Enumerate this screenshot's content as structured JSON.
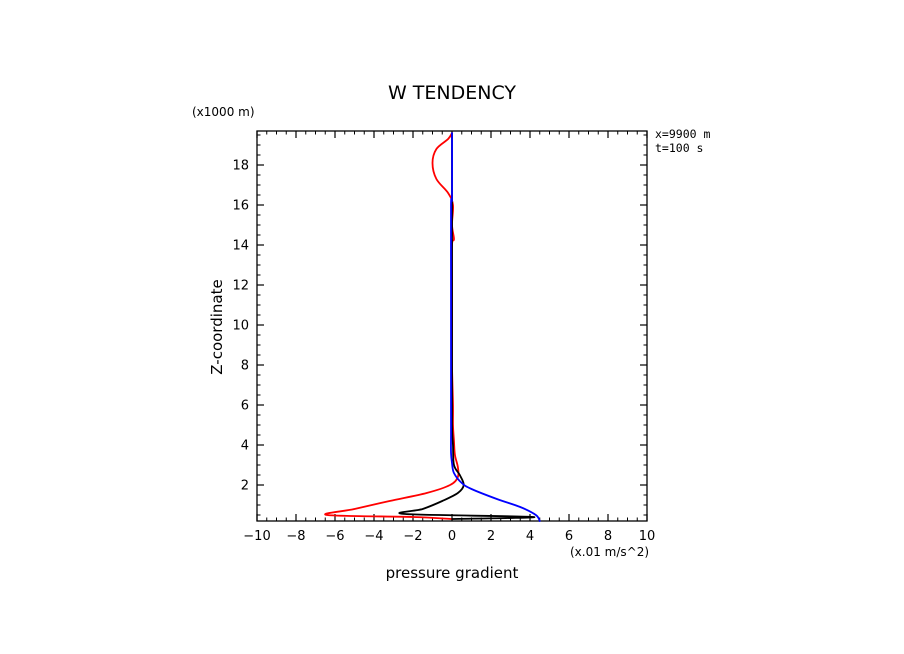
{
  "chart_data": {
    "type": "line",
    "title": "W TENDENCY",
    "xlabel": "pressure gradient",
    "ylabel": "Z-coordinate",
    "x_units": "(x.01 m/s^2)",
    "y_units": "(x1000 m)",
    "xlim": [
      -10,
      10
    ],
    "ylim": [
      0.2,
      19.7
    ],
    "x_ticks": [
      -10,
      -8,
      -6,
      -4,
      -2,
      0,
      2,
      4,
      6,
      8,
      10
    ],
    "y_ticks": [
      2,
      4,
      6,
      8,
      10,
      12,
      14,
      16,
      18
    ],
    "grid": false,
    "annotations": [
      "x=9900 m",
      "t=100 s"
    ],
    "series": [
      {
        "name": "red",
        "color": "#ff0000",
        "points": [
          [
            0.0,
            0.3
          ],
          [
            -2.0,
            0.4
          ],
          [
            -6.4,
            0.5
          ],
          [
            -5.0,
            0.8
          ],
          [
            -3.2,
            1.2
          ],
          [
            -1.3,
            1.6
          ],
          [
            -0.1,
            2.0
          ],
          [
            0.3,
            2.4
          ],
          [
            0.3,
            2.9
          ],
          [
            0.15,
            3.5
          ],
          [
            0.1,
            4.2
          ],
          [
            0.05,
            5.0
          ],
          [
            0.05,
            6.0
          ],
          [
            0.0,
            8.0
          ],
          [
            0.0,
            10.0
          ],
          [
            0.0,
            12.0
          ],
          [
            0.0,
            14.0
          ],
          [
            0.1,
            14.3
          ],
          [
            0.0,
            15.0
          ],
          [
            0.05,
            16.0
          ],
          [
            -0.2,
            16.6
          ],
          [
            -0.8,
            17.3
          ],
          [
            -1.0,
            18.1
          ],
          [
            -0.8,
            18.8
          ],
          [
            -0.2,
            19.3
          ],
          [
            0.0,
            19.6
          ]
        ]
      },
      {
        "name": "black",
        "color": "#000000",
        "points": [
          [
            0.0,
            0.3
          ],
          [
            4.2,
            0.4
          ],
          [
            -2.4,
            0.55
          ],
          [
            -1.5,
            0.8
          ],
          [
            -0.5,
            1.2
          ],
          [
            0.3,
            1.6
          ],
          [
            0.6,
            2.0
          ],
          [
            0.4,
            2.5
          ],
          [
            0.1,
            3.0
          ],
          [
            0.05,
            4.0
          ],
          [
            0.0,
            5.0
          ],
          [
            0.0,
            8.0
          ],
          [
            0.0,
            12.0
          ],
          [
            0.0,
            16.0
          ],
          [
            0.0,
            19.6
          ]
        ]
      },
      {
        "name": "blue",
        "color": "#0000ff",
        "points": [
          [
            4.5,
            0.2
          ],
          [
            4.3,
            0.5
          ],
          [
            3.5,
            0.9
          ],
          [
            2.3,
            1.3
          ],
          [
            1.0,
            1.8
          ],
          [
            0.5,
            2.1
          ],
          [
            0.1,
            2.6
          ],
          [
            0.0,
            3.1
          ],
          [
            -0.05,
            3.6
          ],
          [
            -0.05,
            4.5
          ],
          [
            -0.05,
            6.0
          ],
          [
            -0.05,
            8.0
          ],
          [
            -0.05,
            12.0
          ],
          [
            -0.05,
            16.0
          ],
          [
            0.0,
            16.4
          ],
          [
            0.0,
            19.6
          ]
        ]
      }
    ]
  }
}
